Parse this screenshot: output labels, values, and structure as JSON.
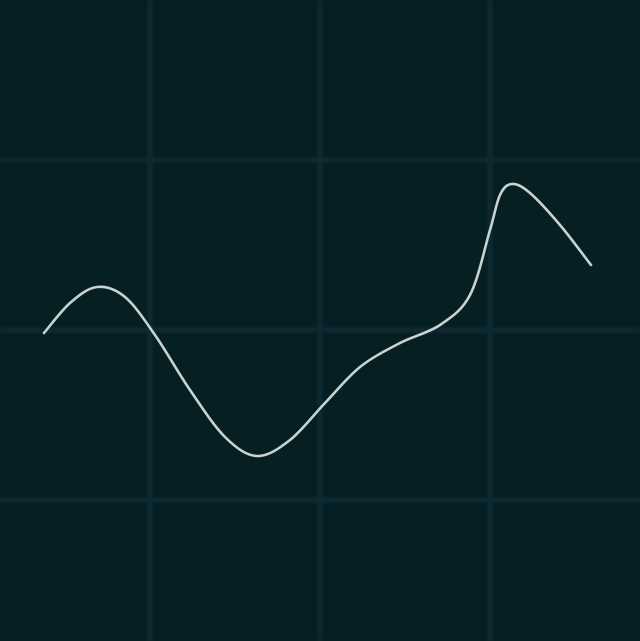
{
  "chart_data": {
    "type": "line",
    "grid": true,
    "x": [
      44,
      70,
      97,
      125,
      155,
      190,
      225,
      257,
      290,
      325,
      360,
      400,
      440,
      470,
      490,
      500,
      512,
      530,
      560,
      591
    ],
    "series": [
      {
        "color": "#c9d1d1",
        "values": [
          308,
          338,
          354,
          344,
          306,
          251,
          204,
          185,
          201,
          238,
          274,
          298,
          316,
          346,
          411,
          446,
          457,
          448,
          416,
          376
        ]
      }
    ],
    "xlim": [
      0,
      640
    ],
    "ylim": [
      0,
      641
    ],
    "xticks": [
      150,
      320,
      490
    ],
    "yticks": [
      141,
      311,
      481
    ]
  }
}
